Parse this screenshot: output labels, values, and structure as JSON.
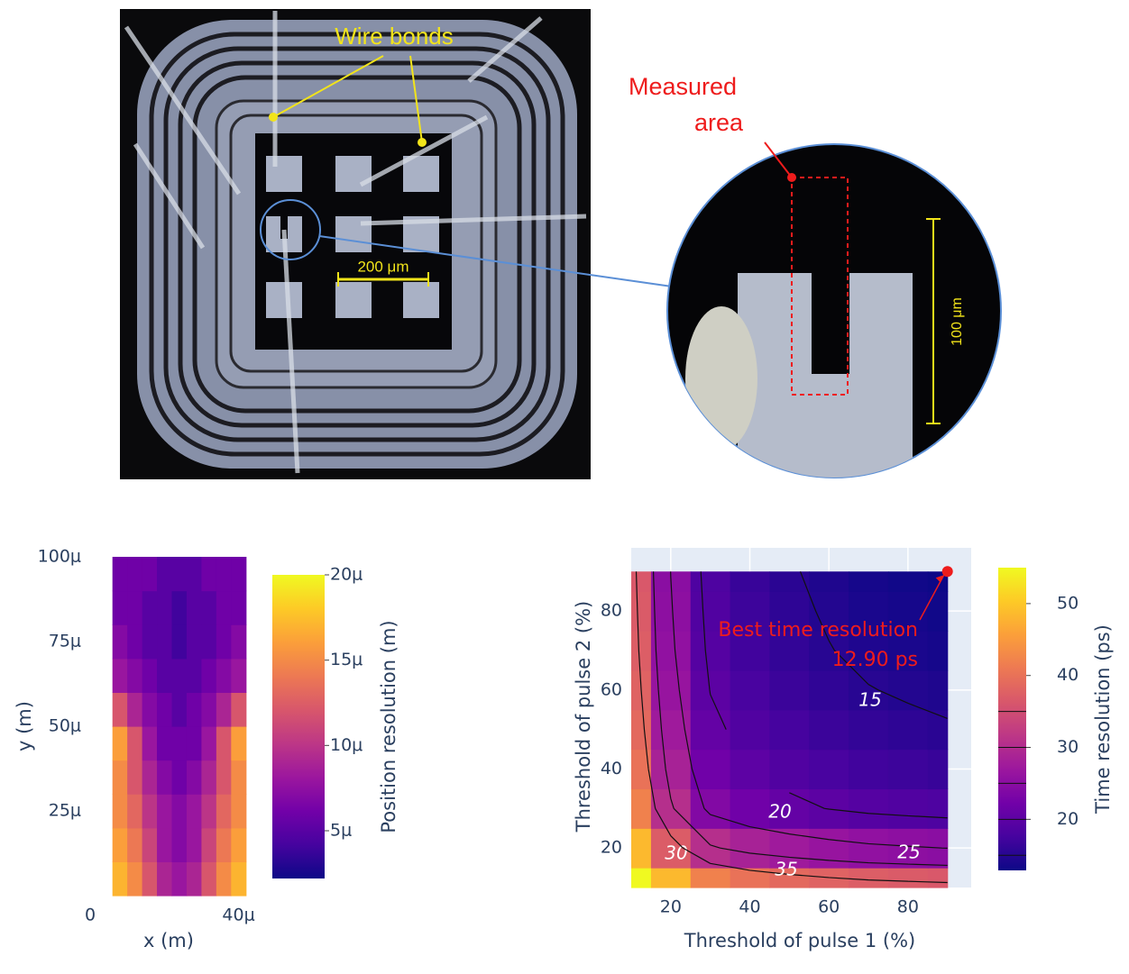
{
  "photo": {
    "wire_bonds": "Wire bonds",
    "scale_200": "200 μm",
    "measured_area": [
      "Measured",
      "area"
    ],
    "scale_100": "100 μm"
  },
  "chart_data": [
    {
      "type": "heatmap",
      "x_label": "x (m)",
      "y_label": "y (m)",
      "colorbar_title": "Position resolution (m)",
      "x": [
        8e-06,
        1.2e-05,
        1.6e-05,
        2e-05,
        2.4e-05,
        2.8e-05,
        3.2e-05,
        3.6e-05,
        4e-05
      ],
      "y": [
        5e-06,
        1.5e-05,
        2.5e-05,
        3.5e-05,
        4.5e-05,
        5.5e-05,
        6.5e-05,
        7.5e-05,
        8.5e-05,
        9.5e-05
      ],
      "z": [
        [
          1.7e-05,
          1.5e-05,
          1.2e-05,
          9e-06,
          8e-06,
          9e-06,
          1.2e-05,
          1.5e-05,
          1.7e-05
        ],
        [
          1.6e-05,
          1.4e-05,
          1.1e-05,
          8e-06,
          7e-06,
          8e-06,
          1.1e-05,
          1.4e-05,
          1.6e-05
        ],
        [
          1.5e-05,
          1.3e-05,
          1e-05,
          8e-06,
          7e-06,
          8e-06,
          1e-05,
          1.3e-05,
          1.5e-05
        ],
        [
          1.5e-05,
          1.2e-05,
          9e-06,
          7e-06,
          6e-06,
          7e-06,
          9e-06,
          1.2e-05,
          1.5e-05
        ],
        [
          1.6e-05,
          1.2e-05,
          8e-06,
          6e-06,
          6e-06,
          6e-06,
          8e-06,
          1.2e-05,
          1.6e-05
        ],
        [
          1.2e-05,
          9e-06,
          7e-06,
          6e-06,
          5e-06,
          6e-06,
          7e-06,
          9e-06,
          1.2e-05
        ],
        [
          8e-06,
          7e-06,
          6e-06,
          5e-06,
          5e-06,
          5e-06,
          6e-06,
          7e-06,
          8e-06
        ],
        [
          7e-06,
          6e-06,
          5e-06,
          5e-06,
          4e-06,
          5e-06,
          5e-06,
          6e-06,
          7e-06
        ],
        [
          6e-06,
          6e-06,
          5e-06,
          5e-06,
          4e-06,
          5e-06,
          5e-06,
          6e-06,
          6e-06
        ],
        [
          6e-06,
          6e-06,
          6e-06,
          5e-06,
          5e-06,
          5e-06,
          6e-06,
          6e-06,
          6e-06
        ]
      ],
      "xlim": [
        0,
        4.4e-05
      ],
      "ylim": [
        0,
        0.0001
      ],
      "xticks": [
        0,
        {
          "value": 4e-05,
          "label": "40μ"
        }
      ],
      "yticks": [
        {
          "value": 2.5e-05,
          "label": "25μ"
        },
        {
          "value": 5e-05,
          "label": "50μ"
        },
        {
          "value": 7.5e-05,
          "label": "75μ"
        },
        {
          "value": 0.0001,
          "label": "100μ"
        }
      ],
      "zlim": [
        2.2e-06,
        2e-05
      ],
      "zticks": [
        {
          "value": 5e-06,
          "label": "5μ"
        },
        {
          "value": 1e-05,
          "label": "10μ"
        },
        {
          "value": 1.5e-05,
          "label": "15μ"
        },
        {
          "value": 2e-05,
          "label": "20μ"
        }
      ],
      "colorscale": [
        "#0d0887",
        "#46039f",
        "#7201a8",
        "#9c179e",
        "#bd3786",
        "#d8576b",
        "#ed7953",
        "#fb9f3a",
        "#fdca26",
        "#f0f921"
      ]
    },
    {
      "type": "contour",
      "x_label": "Threshold of pulse 1 (%)",
      "y_label": "Threshold of pulse 2 (%)",
      "colorbar_title": "Time resolution (ps)",
      "x": [
        10,
        20,
        30,
        40,
        50,
        60,
        70,
        80,
        90
      ],
      "y": [
        10,
        20,
        30,
        40,
        50,
        60,
        70,
        80,
        90
      ],
      "z": [
        [
          60,
          48.5,
          42,
          40,
          38.8,
          37.9,
          37.2,
          36.8,
          36.45
        ],
        [
          48.5,
          37,
          30.5,
          28.5,
          27.3,
          26.4,
          25.7,
          25.3,
          24.95
        ],
        [
          42,
          30.5,
          24,
          22,
          20.8,
          19.9,
          19.2,
          18.8,
          18.45
        ],
        [
          40,
          28.5,
          22,
          20,
          18.8,
          17.9,
          17.2,
          16.8,
          16.45
        ],
        [
          38.8,
          27.3,
          20.8,
          18.8,
          17.6,
          16.7,
          16,
          15.6,
          15.25
        ],
        [
          37.9,
          26.4,
          19.9,
          17.9,
          16.7,
          15.8,
          15.1,
          14.7,
          14.35
        ],
        [
          37.2,
          25.7,
          19.2,
          17.2,
          16,
          15.1,
          14.4,
          14,
          13.65
        ],
        [
          36.8,
          25.3,
          18.8,
          16.8,
          15.6,
          14.7,
          14,
          13.6,
          13.25
        ],
        [
          36.45,
          24.95,
          18.45,
          16.45,
          15.25,
          14.35,
          13.65,
          13.25,
          12.9
        ]
      ],
      "xlim": [
        10,
        96
      ],
      "ylim": [
        10,
        96
      ],
      "xticks": [
        20,
        40,
        60,
        80
      ],
      "yticks": [
        20,
        40,
        60,
        80
      ],
      "grid": true,
      "zlim": [
        12.9,
        55
      ],
      "zticks": [
        20,
        30,
        40,
        50
      ],
      "contour_levels": [
        15,
        20,
        25,
        30,
        35
      ],
      "colorscale": [
        "#0d0887",
        "#46039f",
        "#7201a8",
        "#9c179e",
        "#bd3786",
        "#d8576b",
        "#ed7953",
        "#fb9f3a",
        "#fdca26",
        "#f0f921"
      ],
      "annotation": "Best time resolution",
      "best": {
        "x": 90,
        "y": 90,
        "resolution": {
          "value": 12.9,
          "label": "12.90 ps"
        }
      }
    }
  ]
}
